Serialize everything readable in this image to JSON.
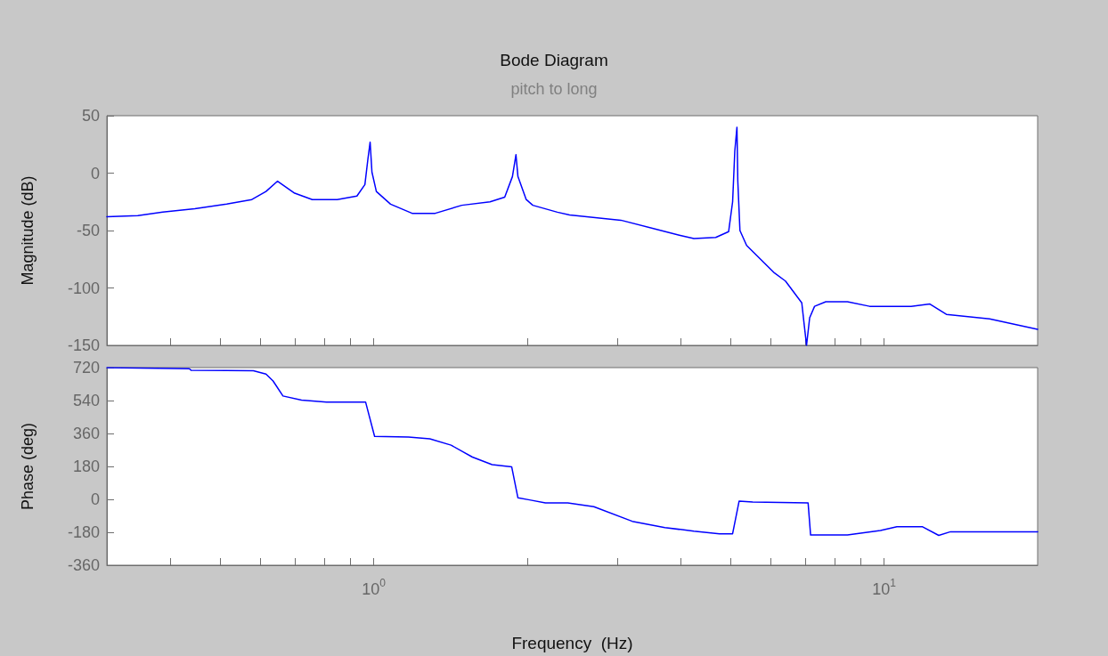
{
  "chart_data": [
    {
      "type": "line",
      "title": "Bode Diagram",
      "subtitle": "pitch to long",
      "ylabel": "Magnitude (dB)",
      "log": "x",
      "grid": false,
      "marker": "none",
      "line_style": "solid",
      "tick_labels": "y",
      "xlim": [
        0.3,
        20
      ],
      "xticks": [
        {
          "value": 0.4,
          "label": null
        },
        {
          "value": 0.5,
          "label": null
        },
        {
          "value": 0.6,
          "label": null
        },
        {
          "value": 0.7,
          "label": null
        },
        {
          "value": 0.8,
          "label": null
        },
        {
          "value": 0.9,
          "label": null
        },
        {
          "value": 1,
          "label": null
        },
        {
          "value": 2,
          "label": null
        },
        {
          "value": 3,
          "label": null
        },
        {
          "value": 4,
          "label": null
        },
        {
          "value": 5,
          "label": null
        },
        {
          "value": 6,
          "label": null
        },
        {
          "value": 7,
          "label": null
        },
        {
          "value": 8,
          "label": null
        },
        {
          "value": 9,
          "label": null
        },
        {
          "value": 10,
          "label": null
        }
      ],
      "ylim": [
        -150,
        50
      ],
      "yticks": [
        -150,
        -100,
        -50,
        0,
        50
      ],
      "series": [
        {
          "color": "#0000ff",
          "x": [
            0.3,
            0.345,
            0.386,
            0.446,
            0.515,
            0.577,
            0.615,
            0.648,
            0.7,
            0.758,
            0.848,
            0.927,
            0.961,
            0.974,
            0.984,
            0.992,
            1.012,
            1.079,
            1.189,
            1.32,
            1.488,
            1.69,
            1.806,
            1.87,
            1.9,
            1.917,
            1.99,
            2.05,
            2.29,
            2.42,
            3.05,
            3.97,
            4.24,
            4.68,
            4.96,
            5.05,
            5.1,
            5.15,
            5.17,
            5.22,
            5.38,
            6.1,
            6.41,
            6.9,
            6.98,
            7.05,
            7.15,
            7.31,
            7.69,
            8.48,
            9.37,
            11.3,
            12.3,
            13.25,
            16.1,
            20
          ],
          "values": [
            -38,
            -37,
            -34,
            -31,
            -27,
            -23,
            -16,
            -7,
            -17.5,
            -23,
            -23,
            -20,
            -10,
            12,
            27,
            1,
            -16,
            -27,
            -35,
            -35,
            -28,
            -25,
            -21,
            -3,
            16,
            -3,
            -23,
            -28,
            -34,
            -36.5,
            -41,
            -54,
            -57,
            -56,
            -51,
            -25,
            19,
            40,
            -7,
            -50,
            -63,
            -87,
            -94,
            -113,
            -133,
            -150,
            -126,
            -116,
            -112,
            -112,
            -116,
            -116,
            -114,
            -123,
            -127,
            -136
          ]
        }
      ]
    },
    {
      "type": "line",
      "xlabel": "Frequency  (Hz)",
      "ylabel": "Phase (deg)",
      "log": "x",
      "grid": false,
      "marker": "none",
      "line_style": "solid",
      "xlim": [
        0.3,
        20
      ],
      "xticks": [
        {
          "value": 0.4,
          "label": null
        },
        {
          "value": 0.5,
          "label": null
        },
        {
          "value": 0.6,
          "label": null
        },
        {
          "value": 0.7,
          "label": null
        },
        {
          "value": 0.8,
          "label": null
        },
        {
          "value": 0.9,
          "label": null
        },
        {
          "value": 1,
          "label": "10$^{0}$"
        },
        {
          "value": 2,
          "label": null
        },
        {
          "value": 3,
          "label": null
        },
        {
          "value": 4,
          "label": null
        },
        {
          "value": 5,
          "label": null
        },
        {
          "value": 6,
          "label": null
        },
        {
          "value": 7,
          "label": null
        },
        {
          "value": 8,
          "label": null
        },
        {
          "value": 9,
          "label": null
        },
        {
          "value": 10,
          "label": "10$^{1}$"
        }
      ],
      "ylim": [
        -360,
        720
      ],
      "yticks": [
        -360,
        -180,
        0,
        180,
        360,
        540,
        720
      ],
      "series": [
        {
          "color": "#0000ff",
          "x": [
            0.3,
            0.435,
            0.439,
            0.581,
            0.615,
            0.635,
            0.664,
            0.722,
            0.808,
            0.964,
            1.004,
            1.17,
            1.288,
            1.418,
            1.561,
            1.706,
            1.864,
            1.917,
            2.02,
            2.17,
            2.4,
            2.7,
            3.21,
            3.72,
            4.24,
            4.76,
            5.05,
            5.2,
            5.53,
            7.1,
            7.18,
            8.48,
            9.84,
            10.6,
            11.9,
            12.8,
            13.5,
            20
          ],
          "values": [
            720,
            714,
            705,
            703,
            685,
            647,
            565,
            542,
            532,
            532,
            344,
            340,
            331,
            296,
            231,
            190,
            177,
            8,
            -3,
            -19,
            -20,
            -40,
            -120,
            -154,
            -174,
            -188,
            -188,
            -10,
            -14,
            -20,
            -195,
            -195,
            -170,
            -150,
            -150,
            -197,
            -177,
            -178
          ]
        }
      ]
    }
  ]
}
